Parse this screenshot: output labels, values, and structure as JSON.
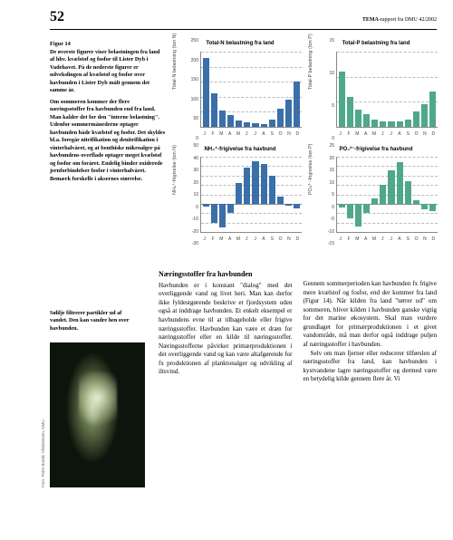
{
  "header": {
    "page_number": "52",
    "report_prefix": "TEMA",
    "report_suffix": "-rapport fra DMU   42/2002"
  },
  "figure_caption": {
    "label": "Figur 14",
    "text": "De øverste figurer viser belastningen fra land af hhv. kvælstof og fosfor til Lister Dyb i Vadehavet. På de nederste figurer er udvekslingen af kvælstof og fosfor over havbunden i Lister Dyb målt gennem det samme år.",
    "para2": "Om sommeren kommer der flere næringsstoffer fra havbunden end fra land. Man kalder det for den \"interne belastning\". Udenfor sommermånederne optager havbunden både kvælstof og fosfor. Det skyldes bl.a. foregår nitrifikation og denitrifikation i vinterhalvåret, og at benthiske mikroalger på havbundens overflade optager meget kvælstof og fosfor om foråret. Endelig binder oxiderede jernforbindelser fosfor i vinterhalvåret. Bemærk forskelle i aksernes størrelse."
  },
  "months": [
    "J",
    "F",
    "M",
    "A",
    "M",
    "J",
    "J",
    "A",
    "S",
    "O",
    "N",
    "D"
  ],
  "chart_colors": {
    "n_color": "#3a6fa8",
    "p_color": "#4fa88c",
    "grid": "#bbbbbb",
    "axis": "#888888"
  },
  "charts": {
    "n_load": {
      "title": "Total-N belastning fra land",
      "ylabel": "Total-N belastning (ton N)",
      "ylim": [
        0,
        250
      ],
      "ytick_step": 50,
      "values": [
        230,
        110,
        55,
        40,
        20,
        15,
        12,
        10,
        25,
        60,
        90,
        150
      ],
      "color": "#3a6fa8"
    },
    "p_load": {
      "title": "Total-P belastning fra land",
      "ylabel": "Total-P belastning (ton P)",
      "ylim": [
        0,
        15
      ],
      "ytick_step": 5,
      "values": [
        11,
        6,
        3.5,
        2.5,
        1.5,
        1,
        1,
        1,
        1.5,
        3,
        4.5,
        7
      ],
      "color": "#4fa88c"
    },
    "nh4": {
      "title": "NH₄⁺-frigivelse fra havbund",
      "ylabel": "NH₄⁺-frigivelse (ton N)",
      "ylim": [
        -30,
        50
      ],
      "ytick_step": 10,
      "values": [
        -3,
        -20,
        -25,
        -10,
        22,
        38,
        45,
        42,
        30,
        8,
        -2,
        -5
      ],
      "color": "#3a6fa8"
    },
    "po4": {
      "title": "PO₄³⁻-frigivelse fra havbund",
      "ylabel": "PO₄³⁻-frigivelse (ton P)",
      "ylim": [
        -15,
        25
      ],
      "ytick_step": 5,
      "values": [
        -2,
        -8,
        -12,
        -5,
        3,
        10,
        18,
        22,
        12,
        2,
        -3,
        -4
      ],
      "color": "#4fa88c"
    }
  },
  "photo": {
    "caption": "Sølilje filtrerer partikler ud af vandet. Den kan vandre hen over havbunden.",
    "credit": "Foto: Peter Bondo Christensen, DMU."
  },
  "body": {
    "heading": "Næringsstoffer fra havbunden",
    "col1_p1": "Havbunden er i konstant \"dialog\" med det overliggende vand og livet heri. Man kan derfor ikke fyldestgørende beskrive et fjordsystem uden også at inddrage havbunden. Et enkelt eksempel er havbundens evne til at tilbageholde eller frigive næringsstoffer. Havbunden kan være et dræn for næringsstoffer eller en kilde til næringsstoffer. Næringsstofferne påvirker primærproduktionen i det overliggende vand og kan være altafgørende for fx produktionen af planktonalger og udvikling af iltsvind.",
    "col2_p1": "Gennem sommerperioden kan havbunden fx frigive mere kvælstof og fosfor, end der kommer fra land (Figur 14). Når kilden fra land \"tørrer ud\" om sommeren, bliver kilden i havbunden ganske vigtig for det marine økosystem. Skal man vurdere grundlaget for primærproduktionen i et givet vandområde, må man derfor også inddrage puljen af næringsstoffer i havbunden.",
    "col2_p2": "Selv om man fjerner eller reducerer tilførslen af næringsstoffer fra land, kan havbunden i kystvandene lagre næringsstoffer og dermed være en betydelig kilde gennem flere år. Vi"
  }
}
